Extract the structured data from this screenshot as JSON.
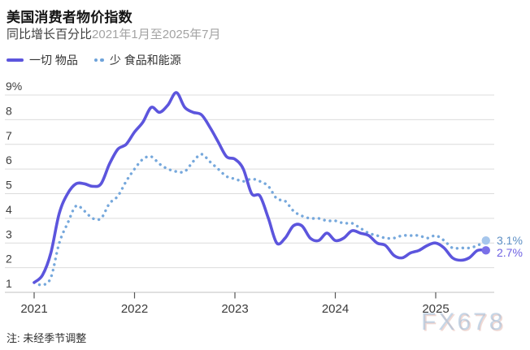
{
  "header": {
    "title": "美国消费者物价指数",
    "subtitle": "同比增长百分比",
    "subtitle_range": "2021年1月至2025年7月"
  },
  "legend": {
    "items": [
      {
        "label": "一切 物品",
        "swatch": "solid-dash"
      },
      {
        "label": "少 食品和能源",
        "swatch": "dots"
      }
    ]
  },
  "chart_data": {
    "type": "line",
    "title": "美国消费者物价指数",
    "subtitle": "同比增长百分比2021年1月至2025年7月",
    "x_start": "2021-01",
    "x_end": "2025-07",
    "points_per_month": 1,
    "x_tick_labels": [
      "2021",
      "2022",
      "2023",
      "2024",
      "2025"
    ],
    "y_tick_labels": [
      "9%",
      "8",
      "7",
      "6",
      "5",
      "4",
      "3",
      "2",
      "1"
    ],
    "ylim": [
      1,
      9
    ],
    "grid": "horizontal",
    "legend_position": "top-left",
    "gridline_color": "#dcdcdc",
    "axis_color": "#c0c0c0",
    "tick_color": "#555555",
    "axis_label_color": "#3b3b3b",
    "series": [
      {
        "name": "一切 物品",
        "style": "solid",
        "color": "#5c55dd",
        "dot_color": "#7a70e8",
        "end_label": "2.7%",
        "values": [
          1.4,
          1.7,
          2.6,
          4.2,
          5.0,
          5.4,
          5.4,
          5.3,
          5.4,
          6.2,
          6.8,
          7.0,
          7.5,
          7.9,
          8.5,
          8.3,
          8.6,
          9.1,
          8.5,
          8.3,
          8.2,
          7.7,
          7.1,
          6.5,
          6.4,
          6.0,
          5.0,
          4.9,
          4.0,
          3.0,
          3.2,
          3.7,
          3.7,
          3.2,
          3.1,
          3.4,
          3.1,
          3.2,
          3.5,
          3.4,
          3.3,
          3.0,
          2.9,
          2.5,
          2.4,
          2.6,
          2.7,
          2.9,
          3.0,
          2.8,
          2.4,
          2.3,
          2.4,
          2.7,
          2.7
        ]
      },
      {
        "name": "少 食品和能源",
        "style": "dotted",
        "color": "#76a8dc",
        "dot_color": "#a6c6ec",
        "end_label": "3.1%",
        "values": [
          1.4,
          1.3,
          1.6,
          3.0,
          3.8,
          4.5,
          4.3,
          4.0,
          4.0,
          4.6,
          4.9,
          5.5,
          6.0,
          6.4,
          6.5,
          6.2,
          6.0,
          5.9,
          5.9,
          6.3,
          6.6,
          6.3,
          6.0,
          5.7,
          5.6,
          5.5,
          5.6,
          5.5,
          5.3,
          4.8,
          4.7,
          4.3,
          4.1,
          4.0,
          4.0,
          3.9,
          3.9,
          3.8,
          3.8,
          3.6,
          3.4,
          3.3,
          3.2,
          3.2,
          3.3,
          3.3,
          3.3,
          3.2,
          3.3,
          3.1,
          2.8,
          2.8,
          2.8,
          2.9,
          3.1
        ]
      }
    ]
  },
  "footer": {
    "note": "注: 未经季节调整",
    "watermark": "FX678"
  }
}
